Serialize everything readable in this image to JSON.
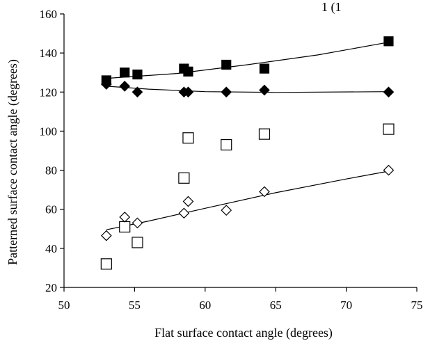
{
  "chart_data": {
    "type": "scatter",
    "xlabel": "Flat surface contact angle (degrees)",
    "ylabel": "Patterned surface contact angle (degrees)",
    "top_partial_text": "1 (1",
    "xlim": [
      50,
      75
    ],
    "ylim": [
      20,
      160
    ],
    "x_ticks": [
      50,
      55,
      60,
      65,
      70,
      75
    ],
    "y_ticks": [
      20,
      40,
      60,
      80,
      100,
      120,
      140,
      160
    ],
    "grid": false,
    "series": [
      {
        "marker": "filled-square",
        "color": "#000000",
        "points": [
          [
            53.0,
            126
          ],
          [
            54.3,
            130
          ],
          [
            55.2,
            129
          ],
          [
            58.5,
            132
          ],
          [
            58.8,
            130.5
          ],
          [
            61.5,
            134
          ],
          [
            64.2,
            132
          ],
          [
            73.0,
            146
          ]
        ],
        "trend": [
          [
            53.0,
            127
          ],
          [
            58,
            129.5
          ],
          [
            63,
            134
          ],
          [
            68,
            139
          ],
          [
            73.0,
            145.5
          ]
        ]
      },
      {
        "marker": "filled-diamond",
        "color": "#000000",
        "points": [
          [
            53.0,
            124
          ],
          [
            54.3,
            123
          ],
          [
            55.2,
            120
          ],
          [
            58.5,
            120
          ],
          [
            58.8,
            120
          ],
          [
            61.5,
            120
          ],
          [
            64.2,
            121
          ],
          [
            73.0,
            120
          ]
        ],
        "trend": [
          [
            53.0,
            123
          ],
          [
            56,
            121.5
          ],
          [
            60,
            120.2
          ],
          [
            65,
            119.8
          ],
          [
            73.0,
            120.2
          ]
        ]
      },
      {
        "marker": "open-square",
        "color": "#000000",
        "points": [
          [
            53.0,
            32
          ],
          [
            54.3,
            51
          ],
          [
            55.2,
            43
          ],
          [
            58.5,
            76
          ],
          [
            58.8,
            96.5
          ],
          [
            61.5,
            93
          ],
          [
            64.2,
            98.5
          ],
          [
            73.0,
            101
          ]
        ],
        "trend": []
      },
      {
        "marker": "open-diamond",
        "color": "#000000",
        "points": [
          [
            53.0,
            46.5
          ],
          [
            54.3,
            56
          ],
          [
            55.2,
            53
          ],
          [
            58.5,
            58
          ],
          [
            58.8,
            64
          ],
          [
            61.5,
            59.5
          ],
          [
            64.2,
            69
          ],
          [
            73.0,
            80
          ]
        ],
        "trend": [
          [
            53.0,
            49.5
          ],
          [
            56,
            54
          ],
          [
            60,
            60.5
          ],
          [
            65,
            68.5
          ],
          [
            70,
            75.5
          ],
          [
            73.0,
            79.5
          ]
        ]
      }
    ]
  }
}
